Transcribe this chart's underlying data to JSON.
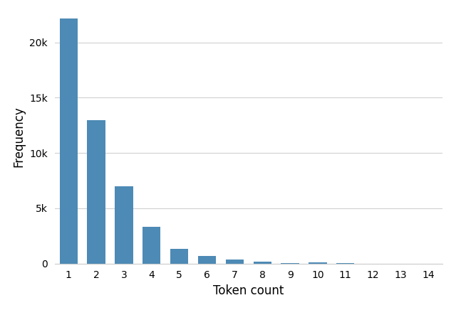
{
  "categories": [
    1,
    2,
    3,
    4,
    5,
    6,
    7,
    8,
    9,
    10,
    11,
    12,
    13,
    14
  ],
  "values": [
    22200,
    13000,
    7000,
    3300,
    1300,
    700,
    350,
    150,
    70,
    80,
    30,
    0,
    0,
    0
  ],
  "bar_color": "#4d8ab5",
  "xlabel": "Token count",
  "ylabel": "Frequency",
  "xlim": [
    0.5,
    14.5
  ],
  "ylim": [
    0,
    23000
  ],
  "yticks": [
    0,
    5000,
    10000,
    15000,
    20000
  ],
  "ytick_labels": [
    "0",
    "5k",
    "10k",
    "15k",
    "20k"
  ],
  "background_color": "#ffffff",
  "grid_color": "#d0d0d0",
  "xlabel_fontsize": 12,
  "ylabel_fontsize": 12,
  "tick_fontsize": 10,
  "bar_width": 0.65
}
